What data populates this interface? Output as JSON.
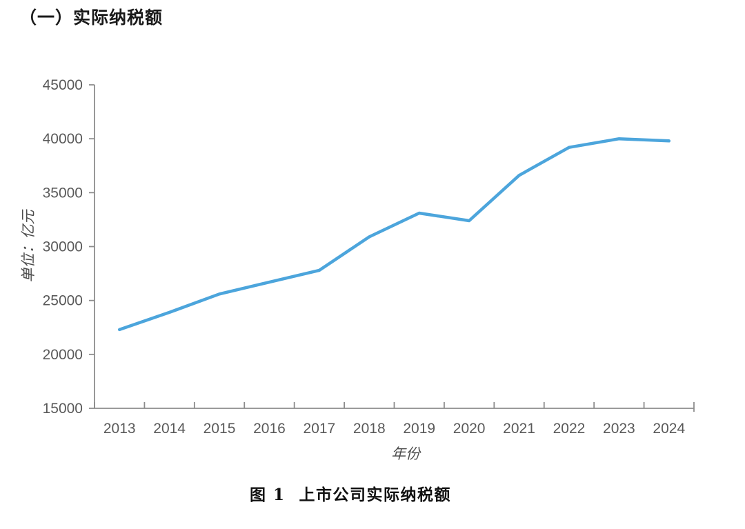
{
  "page": {
    "section_title": "（一）实际纳税额",
    "figure_label": "图 1",
    "figure_title": "上市公司实际纳税额"
  },
  "chart_data": {
    "type": "line",
    "title": "图 1 上市公司实际纳税额",
    "xlabel": "年份",
    "ylabel": "单位：亿元",
    "categories": [
      "2013",
      "2014",
      "2015",
      "2016",
      "2017",
      "2018",
      "2019",
      "2020",
      "2021",
      "2022",
      "2023",
      "2024"
    ],
    "series": [
      {
        "name": "上市公司实际纳税额",
        "values": [
          22300,
          23900,
          25600,
          26700,
          27800,
          30900,
          33100,
          32400,
          36600,
          39200,
          40000,
          39800
        ]
      }
    ],
    "ylim": [
      15000,
      45000
    ],
    "yticks": [
      15000,
      20000,
      25000,
      30000,
      35000,
      40000,
      45000
    ],
    "grid": false,
    "legend_position": "none",
    "colors": {
      "line": "#4CA5DC",
      "axis": "#8c8c8c",
      "tick_label": "#595959"
    },
    "line_width": 4.5
  }
}
